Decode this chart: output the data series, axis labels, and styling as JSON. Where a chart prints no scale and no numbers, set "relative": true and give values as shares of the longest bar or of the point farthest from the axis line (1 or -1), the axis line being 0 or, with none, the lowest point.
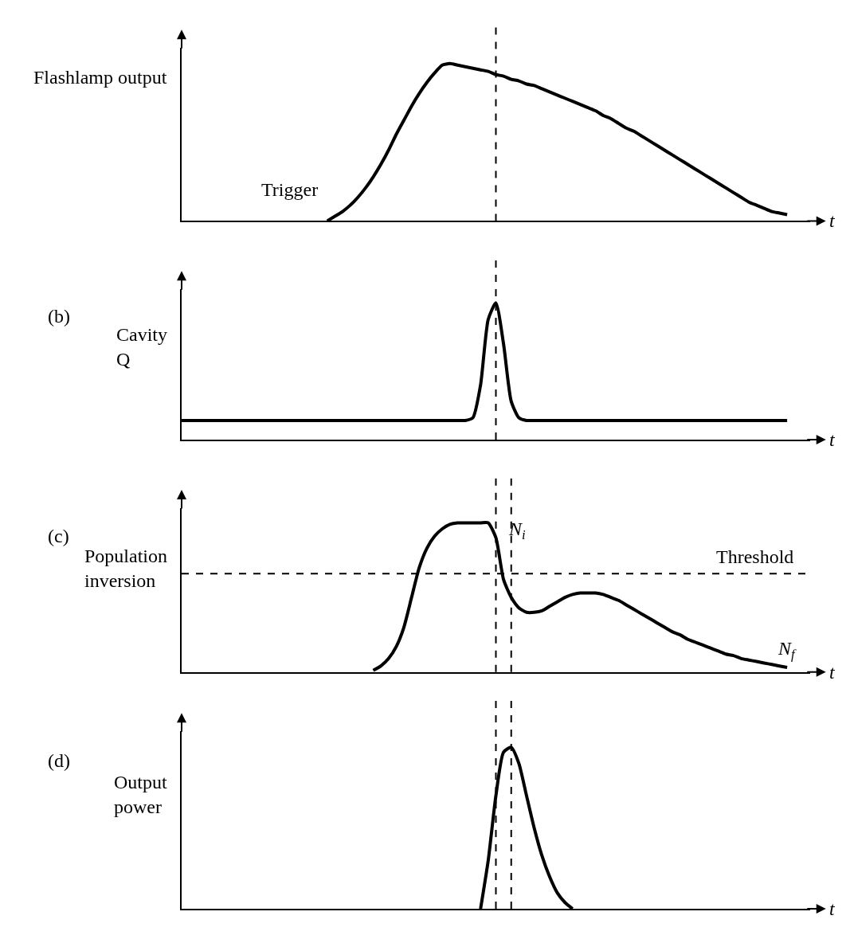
{
  "chart_data": [
    {
      "type": "line",
      "ylabel": "Flashlamp output",
      "xlabel": "t",
      "relative": true,
      "color": "#000000",
      "line_style": "solid",
      "marker": "none",
      "categories": [
        null,
        null,
        null,
        null,
        null,
        null,
        null,
        null,
        null,
        null,
        null,
        null,
        null,
        null,
        null,
        null,
        null,
        null,
        null,
        null,
        null,
        null,
        null,
        null,
        null,
        null,
        null,
        null,
        null,
        null,
        null,
        null,
        null,
        null,
        null,
        null,
        null,
        null,
        null,
        null,
        null,
        null,
        null,
        null,
        null,
        null,
        null,
        null,
        null,
        null,
        null,
        null,
        null,
        null,
        null,
        null,
        null,
        null,
        null,
        null,
        null,
        null,
        null,
        null,
        null,
        null,
        null,
        null,
        null,
        null,
        null,
        null,
        null,
        null,
        null,
        null,
        null,
        null,
        null,
        null,
        null
      ],
      "values": [
        null,
        null,
        null,
        null,
        null,
        null,
        null,
        null,
        null,
        null,
        null,
        null,
        null,
        null,
        null,
        null,
        null,
        null,
        null,
        0,
        0.03,
        0.06,
        0.1,
        0.15,
        0.21,
        0.28,
        0.36,
        0.45,
        0.55,
        0.64,
        0.73,
        0.81,
        0.88,
        0.94,
        0.99,
        1.0,
        0.99,
        0.98,
        0.97,
        0.96,
        0.95,
        0.93,
        0.92,
        0.9,
        0.89,
        0.87,
        0.86,
        0.84,
        0.82,
        0.8,
        0.78,
        0.76,
        0.74,
        0.72,
        0.7,
        0.67,
        0.65,
        0.62,
        0.59,
        0.57,
        0.54,
        0.51,
        0.48,
        0.45,
        0.42,
        0.39,
        0.36,
        0.33,
        0.3,
        0.27,
        0.24,
        0.21,
        0.18,
        0.15,
        0.12,
        0.1,
        0.08,
        0.06,
        0.05,
        0.04,
        null
      ],
      "annotations": [
        "Trigger"
      ]
    },
    {
      "type": "line",
      "title": "(b)",
      "ylabel": "Cavity\nQ",
      "xlabel": "t",
      "relative": true,
      "color": "#000000",
      "line_style": "solid",
      "marker": "none",
      "categories": [
        null,
        null,
        null,
        null,
        null,
        null,
        null,
        null,
        null,
        null,
        null,
        null,
        null,
        null,
        null,
        null,
        null,
        null,
        null,
        null,
        null,
        null,
        null,
        null,
        null,
        null,
        null,
        null,
        null,
        null,
        null,
        null,
        null,
        null,
        null,
        null,
        null,
        null,
        null,
        null,
        null,
        null,
        null,
        null,
        null,
        null,
        null,
        null,
        null,
        null,
        null,
        null,
        null,
        null,
        null,
        null,
        null,
        null,
        null,
        null,
        null,
        null,
        null,
        null,
        null,
        null,
        null,
        null,
        null,
        null,
        null,
        null,
        null,
        null,
        null,
        null,
        null,
        null,
        null,
        null,
        null
      ],
      "values": [
        0.14,
        0.14,
        0.14,
        0.14,
        0.14,
        0.14,
        0.14,
        0.14,
        0.14,
        0.14,
        0.14,
        0.14,
        0.14,
        0.14,
        0.14,
        0.14,
        0.14,
        0.14,
        0.14,
        0.14,
        0.14,
        0.14,
        0.14,
        0.14,
        0.14,
        0.14,
        0.14,
        0.14,
        0.14,
        0.14,
        0.14,
        0.14,
        0.14,
        0.14,
        0.14,
        0.14,
        0.14,
        0.14,
        0.16,
        0.4,
        0.88,
        1.0,
        0.7,
        0.28,
        0.16,
        0.14,
        0.14,
        0.14,
        0.14,
        0.14,
        0.14,
        0.14,
        0.14,
        0.14,
        0.14,
        0.14,
        0.14,
        0.14,
        0.14,
        0.14,
        0.14,
        0.14,
        0.14,
        0.14,
        0.14,
        0.14,
        0.14,
        0.14,
        0.14,
        0.14,
        0.14,
        0.14,
        0.14,
        0.14,
        0.14,
        0.14,
        0.14,
        0.14,
        0.14,
        0.14,
        null
      ]
    },
    {
      "type": "line",
      "title": "(c)",
      "ylabel": "Population\ninversion",
      "xlabel": "t",
      "relative": true,
      "color": "#000000",
      "line_style": "solid",
      "marker": "none",
      "categories": [
        null,
        null,
        null,
        null,
        null,
        null,
        null,
        null,
        null,
        null,
        null,
        null,
        null,
        null,
        null,
        null,
        null,
        null,
        null,
        null,
        null,
        null,
        null,
        null,
        null,
        null,
        null,
        null,
        null,
        null,
        null,
        null,
        null,
        null,
        null,
        null,
        null,
        null,
        null,
        null,
        null,
        null,
        null,
        null,
        null,
        null,
        null,
        null,
        null,
        null,
        null,
        null,
        null,
        null,
        null,
        null,
        null,
        null,
        null,
        null,
        null,
        null,
        null,
        null,
        null,
        null,
        null,
        null,
        null,
        null,
        null,
        null,
        null,
        null,
        null,
        null,
        null,
        null,
        null,
        null,
        null
      ],
      "values": [
        null,
        null,
        null,
        null,
        null,
        null,
        null,
        null,
        null,
        null,
        null,
        null,
        null,
        null,
        null,
        null,
        null,
        null,
        null,
        null,
        null,
        null,
        null,
        null,
        null,
        0.01,
        0.04,
        0.09,
        0.17,
        0.3,
        0.5,
        0.7,
        0.83,
        0.91,
        0.96,
        0.99,
        1,
        1,
        1,
        1,
        1,
        0.9,
        0.62,
        0.5,
        0.43,
        0.4,
        0.4,
        0.41,
        0.44,
        0.47,
        0.5,
        0.52,
        0.53,
        0.53,
        0.53,
        0.52,
        0.5,
        0.48,
        0.45,
        0.42,
        0.39,
        0.36,
        0.33,
        0.3,
        0.27,
        0.25,
        0.22,
        0.2,
        0.18,
        0.16,
        0.14,
        0.12,
        0.11,
        0.09,
        0.08,
        0.07,
        0.06,
        0.05,
        0.04,
        0.03,
        null
      ],
      "ref_lines": [
        {
          "axis": "y",
          "value": 0.66,
          "label": "Threshold",
          "line_style": "dashed"
        }
      ],
      "annotations": [
        "N$_{i}$",
        "N$_{f}$"
      ]
    },
    {
      "type": "line",
      "title": "(d)",
      "ylabel": "Output\npower",
      "xlabel": "t",
      "relative": true,
      "color": "#000000",
      "line_style": "solid",
      "marker": "none",
      "categories": [
        null,
        null,
        null,
        null,
        null,
        null,
        null,
        null,
        null,
        null,
        null,
        null,
        null,
        null,
        null,
        null,
        null,
        null,
        null,
        null,
        null,
        null,
        null,
        null,
        null,
        null,
        null,
        null,
        null,
        null,
        null,
        null,
        null,
        null,
        null,
        null,
        null,
        null,
        null,
        null,
        null,
        null,
        null,
        null,
        null,
        null,
        null,
        null,
        null,
        null,
        null,
        null,
        null,
        null,
        null,
        null,
        null,
        null,
        null,
        null,
        null,
        null,
        null,
        null,
        null,
        null,
        null,
        null,
        null,
        null,
        null,
        null,
        null,
        null,
        null,
        null,
        null,
        null,
        null,
        null,
        null
      ],
      "values": [
        null,
        null,
        null,
        null,
        null,
        null,
        null,
        null,
        null,
        null,
        null,
        null,
        null,
        null,
        null,
        null,
        null,
        null,
        null,
        null,
        null,
        null,
        null,
        null,
        null,
        null,
        null,
        null,
        null,
        null,
        null,
        null,
        null,
        null,
        null,
        null,
        null,
        null,
        null,
        0,
        0.3,
        0.7,
        0.97,
        1.0,
        0.9,
        0.7,
        0.5,
        0.33,
        0.2,
        0.1,
        0.04,
        0,
        null,
        null,
        null,
        null,
        null,
        null,
        null,
        null,
        null,
        null,
        null,
        null,
        null,
        null,
        null,
        null,
        null,
        null,
        null,
        null,
        null,
        null,
        null,
        null,
        null,
        null,
        null,
        null,
        null
      ]
    }
  ]
}
